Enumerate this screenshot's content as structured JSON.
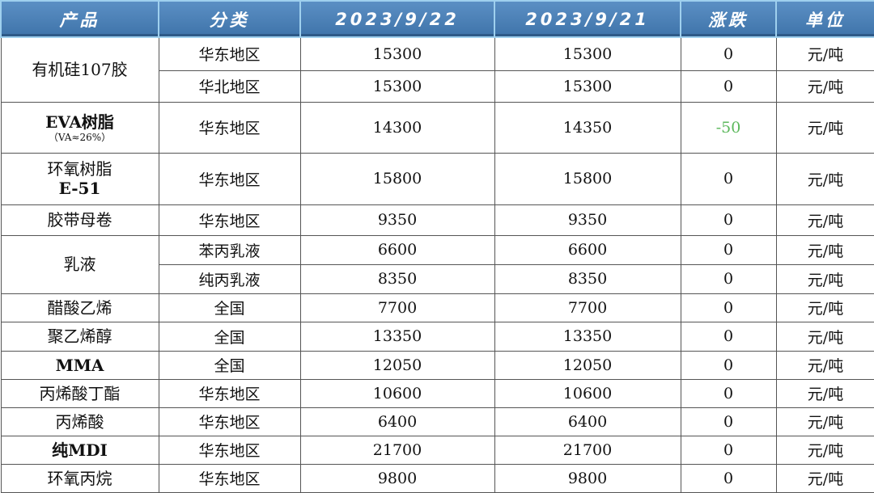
{
  "headers": [
    "产品",
    "分类",
    "2023/9/22",
    "2023/9/21",
    "涨跌",
    "单位"
  ],
  "colors": {
    "header_bg": "#4a7fb5",
    "header_text": "#ffffff",
    "negative_change": "#5cb85c"
  },
  "products": [
    {
      "name": "有机硅107胶",
      "rows": [
        {
          "cat": "华东地区",
          "d1": "15300",
          "d2": "15300",
          "chg": "0",
          "unit": "元/吨"
        },
        {
          "cat": "华北地区",
          "d1": "15300",
          "d2": "15300",
          "chg": "0",
          "unit": "元/吨"
        }
      ]
    },
    {
      "name": "EVA树脂",
      "note": "（VA≈26%）",
      "rows": [
        {
          "cat": "华东地区",
          "d1": "14300",
          "d2": "14350",
          "chg": "-50",
          "unit": "元/吨"
        }
      ]
    },
    {
      "name": "环氧树脂",
      "name2": "E-51",
      "rows": [
        {
          "cat": "华东地区",
          "d1": "15800",
          "d2": "15800",
          "chg": "0",
          "unit": "元/吨"
        }
      ]
    },
    {
      "name": "胶带母卷",
      "rows": [
        {
          "cat": "华东地区",
          "d1": "9350",
          "d2": "9350",
          "chg": "0",
          "unit": "元/吨"
        }
      ]
    },
    {
      "name": "乳液",
      "rows": [
        {
          "cat": "苯丙乳液",
          "d1": "6600",
          "d2": "6600",
          "chg": "0",
          "unit": "元/吨"
        },
        {
          "cat": "纯丙乳液",
          "d1": "8350",
          "d2": "8350",
          "chg": "0",
          "unit": "元/吨"
        }
      ]
    },
    {
      "name": "醋酸乙烯",
      "rows": [
        {
          "cat": "全国",
          "d1": "7700",
          "d2": "7700",
          "chg": "0",
          "unit": "元/吨"
        }
      ]
    },
    {
      "name": "聚乙烯醇",
      "rows": [
        {
          "cat": "全国",
          "d1": "13350",
          "d2": "13350",
          "chg": "0",
          "unit": "元/吨"
        }
      ]
    },
    {
      "name": "MMA",
      "rows": [
        {
          "cat": "全国",
          "d1": "12050",
          "d2": "12050",
          "chg": "0",
          "unit": "元/吨"
        }
      ]
    },
    {
      "name": "丙烯酸丁酯",
      "rows": [
        {
          "cat": "华东地区",
          "d1": "10600",
          "d2": "10600",
          "chg": "0",
          "unit": "元/吨"
        }
      ]
    },
    {
      "name": "丙烯酸",
      "rows": [
        {
          "cat": "华东地区",
          "d1": "6400",
          "d2": "6400",
          "chg": "0",
          "unit": "元/吨"
        }
      ]
    },
    {
      "name": "纯MDI",
      "rows": [
        {
          "cat": "华东地区",
          "d1": "21700",
          "d2": "21700",
          "chg": "0",
          "unit": "元/吨"
        }
      ]
    },
    {
      "name": "环氧丙烷",
      "rows": [
        {
          "cat": "华东地区",
          "d1": "9800",
          "d2": "9800",
          "chg": "0",
          "unit": "元/吨"
        }
      ]
    }
  ]
}
